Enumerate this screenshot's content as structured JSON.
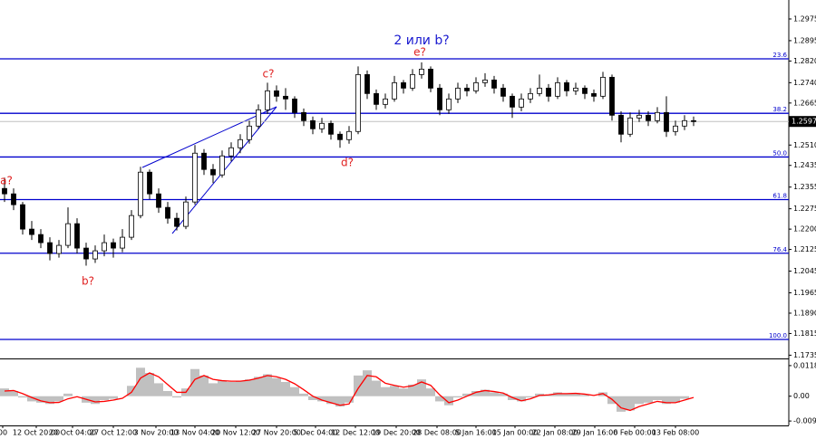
{
  "chart_data": {
    "type": "candlestick",
    "title": "2 или b?",
    "annotations": [
      "a?",
      "b?",
      "c?",
      "d?",
      "e?"
    ],
    "xlim": [
      0,
      87
    ],
    "xticks": [
      {
        "value": 0.3,
        "label": "00"
      },
      {
        "value": 4,
        "label": "12 Oct 20:00"
      },
      {
        "value": 8,
        "label": "20 Oct 04:00"
      },
      {
        "value": 12.5,
        "label": "27 Oct 12:00"
      },
      {
        "value": 17.2,
        "label": "3 Nov 20:00"
      },
      {
        "value": 21.5,
        "label": "13 Nov 04:00"
      },
      {
        "value": 26,
        "label": "20 Nov 12:00"
      },
      {
        "value": 30.5,
        "label": "27 Nov 20:00"
      },
      {
        "value": 34.8,
        "label": "5 Dec 04:00"
      },
      {
        "value": 39.2,
        "label": "12 Dec 12:00"
      },
      {
        "value": 43.7,
        "label": "19 Dec 20:00"
      },
      {
        "value": 48.2,
        "label": "28 Dec 08:00"
      },
      {
        "value": 52.5,
        "label": "5 Jan 16:00"
      },
      {
        "value": 56.8,
        "label": "15 Jan 00:00"
      },
      {
        "value": 61.2,
        "label": "22 Jan 08:00"
      },
      {
        "value": 65.6,
        "label": "29 Jan 16:00"
      },
      {
        "value": 70,
        "label": "6 Feb 00:00"
      },
      {
        "value": 74.5,
        "label": "13 Feb 08:00"
      }
    ],
    "ylim": [
      1.1723,
      1.3045
    ],
    "yticks": [
      1.2975,
      1.2895,
      {
        "value": 1.282,
        "label": "1.2820"
      },
      {
        "value": 1.274,
        "label": "1.2740"
      },
      1.2665,
      {
        "value": 1.251,
        "label": "1.2510"
      },
      1.2435,
      1.2355,
      1.2275,
      {
        "value": 1.22,
        "label": "1.2200"
      },
      1.2125,
      1.2045,
      1.1965,
      {
        "value": 1.189,
        "label": "1.1890"
      },
      1.1815,
      1.1735
    ],
    "current_price": 1.2597,
    "fibo_levels": [
      {
        "label": "23.6",
        "price": 1.2828
      },
      {
        "label": "38.2",
        "price": 1.2627
      },
      {
        "label": "50.0",
        "price": 1.2466
      },
      {
        "label": "61.8",
        "price": 1.2309
      },
      {
        "label": "76.4",
        "price": 1.2111
      },
      {
        "label": "100.0",
        "price": 1.1793
      }
    ],
    "fibo_color": "#0000cd",
    "candles": [
      [
        1.235,
        1.239,
        1.23,
        1.233
      ],
      [
        1.233,
        1.235,
        1.227,
        1.229
      ],
      [
        1.229,
        1.23,
        1.218,
        1.22
      ],
      [
        1.22,
        1.223,
        1.216,
        1.218
      ],
      [
        1.218,
        1.22,
        1.213,
        1.215
      ],
      [
        1.215,
        1.217,
        1.2085,
        1.211
      ],
      [
        1.211,
        1.216,
        1.2095,
        1.214
      ],
      [
        1.214,
        1.228,
        1.213,
        1.222
      ],
      [
        1.222,
        1.224,
        1.211,
        1.213
      ],
      [
        1.213,
        1.215,
        1.2065,
        1.209
      ],
      [
        1.209,
        1.214,
        1.2075,
        1.212
      ],
      [
        1.212,
        1.218,
        1.21,
        1.215
      ],
      [
        1.215,
        1.2165,
        1.2095,
        1.213
      ],
      [
        1.213,
        1.22,
        1.2115,
        1.217
      ],
      [
        1.217,
        1.227,
        1.216,
        1.225
      ],
      [
        1.225,
        1.243,
        1.224,
        1.241
      ],
      [
        1.241,
        1.242,
        1.231,
        1.233
      ],
      [
        1.233,
        1.235,
        1.226,
        1.228
      ],
      [
        1.228,
        1.23,
        1.222,
        1.224
      ],
      [
        1.224,
        1.226,
        1.2195,
        1.221
      ],
      [
        1.221,
        1.232,
        1.22,
        1.23
      ],
      [
        1.23,
        1.251,
        1.229,
        1.248
      ],
      [
        1.248,
        1.2495,
        1.24,
        1.242
      ],
      [
        1.242,
        1.244,
        1.237,
        1.24
      ],
      [
        1.24,
        1.249,
        1.239,
        1.247
      ],
      [
        1.247,
        1.252,
        1.245,
        1.25
      ],
      [
        1.25,
        1.255,
        1.248,
        1.253
      ],
      [
        1.253,
        1.26,
        1.2515,
        1.258
      ],
      [
        1.258,
        1.266,
        1.257,
        1.264
      ],
      [
        1.264,
        1.274,
        1.2625,
        1.271
      ],
      [
        1.271,
        1.273,
        1.267,
        1.269
      ],
      [
        1.269,
        1.272,
        1.264,
        1.268
      ],
      [
        1.268,
        1.269,
        1.261,
        1.263
      ],
      [
        1.263,
        1.2645,
        1.258,
        1.26
      ],
      [
        1.26,
        1.2615,
        1.255,
        1.257
      ],
      [
        1.257,
        1.261,
        1.2555,
        1.259
      ],
      [
        1.259,
        1.26,
        1.253,
        1.255
      ],
      [
        1.255,
        1.256,
        1.25,
        1.253
      ],
      [
        1.253,
        1.258,
        1.2515,
        1.256
      ],
      [
        1.256,
        1.28,
        1.255,
        1.277
      ],
      [
        1.277,
        1.2785,
        1.268,
        1.27
      ],
      [
        1.27,
        1.2715,
        1.264,
        1.266
      ],
      [
        1.266,
        1.27,
        1.2645,
        1.268
      ],
      [
        1.268,
        1.2765,
        1.267,
        1.274
      ],
      [
        1.274,
        1.275,
        1.27,
        1.272
      ],
      [
        1.272,
        1.279,
        1.271,
        1.277
      ],
      [
        1.277,
        1.2815,
        1.2755,
        1.279
      ],
      [
        1.279,
        1.28,
        1.2705,
        1.272
      ],
      [
        1.272,
        1.2735,
        1.262,
        1.264
      ],
      [
        1.264,
        1.27,
        1.2625,
        1.268
      ],
      [
        1.268,
        1.274,
        1.2665,
        1.272
      ],
      [
        1.272,
        1.2735,
        1.269,
        1.271
      ],
      [
        1.271,
        1.276,
        1.27,
        1.274
      ],
      [
        1.274,
        1.2775,
        1.2725,
        1.275
      ],
      [
        1.275,
        1.2765,
        1.27,
        1.272
      ],
      [
        1.272,
        1.2735,
        1.267,
        1.269
      ],
      [
        1.269,
        1.27,
        1.261,
        1.265
      ],
      [
        1.265,
        1.27,
        1.2635,
        1.268
      ],
      [
        1.268,
        1.272,
        1.2665,
        1.27
      ],
      [
        1.27,
        1.277,
        1.269,
        1.272
      ],
      [
        1.272,
        1.2735,
        1.267,
        1.269
      ],
      [
        1.269,
        1.276,
        1.268,
        1.274
      ],
      [
        1.274,
        1.275,
        1.269,
        1.271
      ],
      [
        1.271,
        1.274,
        1.2695,
        1.272
      ],
      [
        1.272,
        1.273,
        1.268,
        1.27
      ],
      [
        1.27,
        1.2715,
        1.267,
        1.269
      ],
      [
        1.269,
        1.278,
        1.268,
        1.276
      ],
      [
        1.276,
        1.277,
        1.26,
        1.262
      ],
      [
        1.262,
        1.2635,
        1.252,
        1.255
      ],
      [
        1.255,
        1.263,
        1.254,
        1.261
      ],
      [
        1.261,
        1.264,
        1.2595,
        1.262
      ],
      [
        1.262,
        1.2635,
        1.258,
        1.26
      ],
      [
        1.26,
        1.265,
        1.259,
        1.263
      ],
      [
        1.263,
        1.269,
        1.254,
        1.256
      ],
      [
        1.256,
        1.26,
        1.2545,
        1.258
      ],
      [
        1.258,
        1.262,
        1.2565,
        1.26
      ],
      [
        1.26,
        1.2615,
        1.258,
        1.2597
      ]
    ],
    "indicator": {
      "ylim": [
        -0.0113,
        0.0139
      ],
      "yticks": [
        0.01183,
        {
          "value": 0,
          "label": "0.00"
        },
        -0.00959
      ],
      "histogram_color": "#c0c0c0",
      "signal_color": "#ff0000",
      "histogram": [
        0.003,
        0.002,
        -0.0005,
        -0.002,
        -0.0025,
        -0.003,
        -0.002,
        0.001,
        0.0,
        -0.0025,
        -0.003,
        -0.0015,
        -0.001,
        0.0,
        0.004,
        0.011,
        0.009,
        0.005,
        0.002,
        -0.0005,
        0.003,
        0.0105,
        0.008,
        0.005,
        0.006,
        0.0055,
        0.006,
        0.0065,
        0.0075,
        0.0085,
        0.007,
        0.0055,
        0.0035,
        0.001,
        -0.0015,
        -0.002,
        -0.003,
        -0.004,
        -0.0025,
        0.008,
        0.01,
        0.006,
        0.0035,
        0.004,
        0.003,
        0.0045,
        0.0065,
        0.003,
        -0.002,
        -0.0035,
        -0.0005,
        0.001,
        0.002,
        0.0025,
        0.0015,
        0.001,
        -0.0015,
        -0.002,
        -0.0005,
        0.001,
        0.0005,
        0.0015,
        0.001,
        0.0012,
        0.0005,
        0.0,
        0.0015,
        -0.003,
        -0.006,
        -0.0055,
        -0.003,
        -0.0025,
        -0.0015,
        -0.003,
        -0.0025,
        -0.001,
        0.0
      ],
      "signal": [
        0.002,
        0.0022,
        0.001,
        -0.0005,
        -0.0018,
        -0.0025,
        -0.0024,
        -0.001,
        -0.0002,
        -0.0012,
        -0.0022,
        -0.002,
        -0.0015,
        -0.0008,
        0.0015,
        0.007,
        0.009,
        0.0075,
        0.0045,
        0.0015,
        0.0015,
        0.0065,
        0.008,
        0.0065,
        0.006,
        0.0058,
        0.0058,
        0.0062,
        0.007,
        0.008,
        0.0075,
        0.0065,
        0.0048,
        0.0025,
        0.0,
        -0.0015,
        -0.0025,
        -0.0035,
        -0.003,
        0.003,
        0.008,
        0.0075,
        0.005,
        0.0042,
        0.0035,
        0.004,
        0.0055,
        0.0042,
        0.0005,
        -0.0025,
        -0.0015,
        0.0,
        0.0015,
        0.0022,
        0.0018,
        0.0012,
        -0.0005,
        -0.0018,
        -0.001,
        0.0003,
        0.0005,
        0.001,
        0.001,
        0.0011,
        0.0008,
        0.0003,
        0.001,
        -0.0012,
        -0.0045,
        -0.0055,
        -0.004,
        -0.003,
        -0.002,
        -0.0025,
        -0.0025,
        -0.0015,
        -0.0005
      ]
    }
  }
}
